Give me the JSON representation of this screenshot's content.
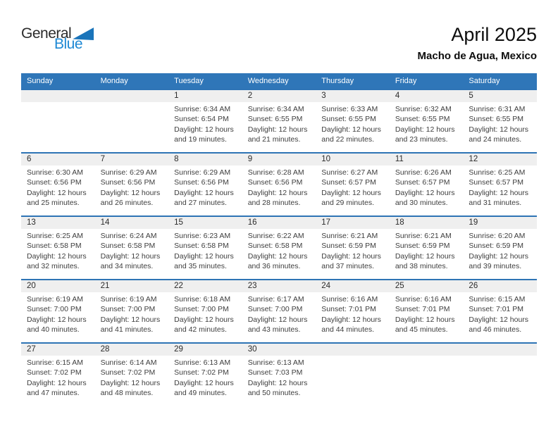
{
  "logo": {
    "part1": "General",
    "part2": "Blue",
    "triangle_color": "#1a74ba",
    "blue_color": "#1d88d4"
  },
  "header": {
    "title": "April 2025",
    "location": "Macho de Agua, Mexico"
  },
  "colors": {
    "weekday_header_bg": "#2f76b8",
    "week_border": "#2e74b5",
    "day_number_band": "#efefef"
  },
  "calendar": {
    "weekdays": [
      "Sunday",
      "Monday",
      "Tuesday",
      "Wednesday",
      "Thursday",
      "Friday",
      "Saturday"
    ],
    "weeks": [
      [
        null,
        null,
        {
          "day": "1",
          "lines": [
            "Sunrise: 6:34 AM",
            "Sunset: 6:54 PM",
            "Daylight: 12 hours",
            "and 19 minutes."
          ]
        },
        {
          "day": "2",
          "lines": [
            "Sunrise: 6:34 AM",
            "Sunset: 6:55 PM",
            "Daylight: 12 hours",
            "and 21 minutes."
          ]
        },
        {
          "day": "3",
          "lines": [
            "Sunrise: 6:33 AM",
            "Sunset: 6:55 PM",
            "Daylight: 12 hours",
            "and 22 minutes."
          ]
        },
        {
          "day": "4",
          "lines": [
            "Sunrise: 6:32 AM",
            "Sunset: 6:55 PM",
            "Daylight: 12 hours",
            "and 23 minutes."
          ]
        },
        {
          "day": "5",
          "lines": [
            "Sunrise: 6:31 AM",
            "Sunset: 6:55 PM",
            "Daylight: 12 hours",
            "and 24 minutes."
          ]
        }
      ],
      [
        {
          "day": "6",
          "lines": [
            "Sunrise: 6:30 AM",
            "Sunset: 6:56 PM",
            "Daylight: 12 hours",
            "and 25 minutes."
          ]
        },
        {
          "day": "7",
          "lines": [
            "Sunrise: 6:29 AM",
            "Sunset: 6:56 PM",
            "Daylight: 12 hours",
            "and 26 minutes."
          ]
        },
        {
          "day": "8",
          "lines": [
            "Sunrise: 6:29 AM",
            "Sunset: 6:56 PM",
            "Daylight: 12 hours",
            "and 27 minutes."
          ]
        },
        {
          "day": "9",
          "lines": [
            "Sunrise: 6:28 AM",
            "Sunset: 6:56 PM",
            "Daylight: 12 hours",
            "and 28 minutes."
          ]
        },
        {
          "day": "10",
          "lines": [
            "Sunrise: 6:27 AM",
            "Sunset: 6:57 PM",
            "Daylight: 12 hours",
            "and 29 minutes."
          ]
        },
        {
          "day": "11",
          "lines": [
            "Sunrise: 6:26 AM",
            "Sunset: 6:57 PM",
            "Daylight: 12 hours",
            "and 30 minutes."
          ]
        },
        {
          "day": "12",
          "lines": [
            "Sunrise: 6:25 AM",
            "Sunset: 6:57 PM",
            "Daylight: 12 hours",
            "and 31 minutes."
          ]
        }
      ],
      [
        {
          "day": "13",
          "lines": [
            "Sunrise: 6:25 AM",
            "Sunset: 6:58 PM",
            "Daylight: 12 hours",
            "and 32 minutes."
          ]
        },
        {
          "day": "14",
          "lines": [
            "Sunrise: 6:24 AM",
            "Sunset: 6:58 PM",
            "Daylight: 12 hours",
            "and 34 minutes."
          ]
        },
        {
          "day": "15",
          "lines": [
            "Sunrise: 6:23 AM",
            "Sunset: 6:58 PM",
            "Daylight: 12 hours",
            "and 35 minutes."
          ]
        },
        {
          "day": "16",
          "lines": [
            "Sunrise: 6:22 AM",
            "Sunset: 6:58 PM",
            "Daylight: 12 hours",
            "and 36 minutes."
          ]
        },
        {
          "day": "17",
          "lines": [
            "Sunrise: 6:21 AM",
            "Sunset: 6:59 PM",
            "Daylight: 12 hours",
            "and 37 minutes."
          ]
        },
        {
          "day": "18",
          "lines": [
            "Sunrise: 6:21 AM",
            "Sunset: 6:59 PM",
            "Daylight: 12 hours",
            "and 38 minutes."
          ]
        },
        {
          "day": "19",
          "lines": [
            "Sunrise: 6:20 AM",
            "Sunset: 6:59 PM",
            "Daylight: 12 hours",
            "and 39 minutes."
          ]
        }
      ],
      [
        {
          "day": "20",
          "lines": [
            "Sunrise: 6:19 AM",
            "Sunset: 7:00 PM",
            "Daylight: 12 hours",
            "and 40 minutes."
          ]
        },
        {
          "day": "21",
          "lines": [
            "Sunrise: 6:19 AM",
            "Sunset: 7:00 PM",
            "Daylight: 12 hours",
            "and 41 minutes."
          ]
        },
        {
          "day": "22",
          "lines": [
            "Sunrise: 6:18 AM",
            "Sunset: 7:00 PM",
            "Daylight: 12 hours",
            "and 42 minutes."
          ]
        },
        {
          "day": "23",
          "lines": [
            "Sunrise: 6:17 AM",
            "Sunset: 7:00 PM",
            "Daylight: 12 hours",
            "and 43 minutes."
          ]
        },
        {
          "day": "24",
          "lines": [
            "Sunrise: 6:16 AM",
            "Sunset: 7:01 PM",
            "Daylight: 12 hours",
            "and 44 minutes."
          ]
        },
        {
          "day": "25",
          "lines": [
            "Sunrise: 6:16 AM",
            "Sunset: 7:01 PM",
            "Daylight: 12 hours",
            "and 45 minutes."
          ]
        },
        {
          "day": "26",
          "lines": [
            "Sunrise: 6:15 AM",
            "Sunset: 7:01 PM",
            "Daylight: 12 hours",
            "and 46 minutes."
          ]
        }
      ],
      [
        {
          "day": "27",
          "lines": [
            "Sunrise: 6:15 AM",
            "Sunset: 7:02 PM",
            "Daylight: 12 hours",
            "and 47 minutes."
          ]
        },
        {
          "day": "28",
          "lines": [
            "Sunrise: 6:14 AM",
            "Sunset: 7:02 PM",
            "Daylight: 12 hours",
            "and 48 minutes."
          ]
        },
        {
          "day": "29",
          "lines": [
            "Sunrise: 6:13 AM",
            "Sunset: 7:02 PM",
            "Daylight: 12 hours",
            "and 49 minutes."
          ]
        },
        {
          "day": "30",
          "lines": [
            "Sunrise: 6:13 AM",
            "Sunset: 7:03 PM",
            "Daylight: 12 hours",
            "and 50 minutes."
          ]
        },
        null,
        null,
        null
      ]
    ]
  }
}
